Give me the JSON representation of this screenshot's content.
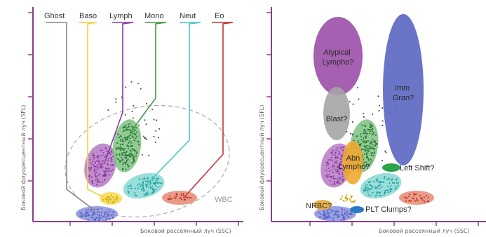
{
  "axes": {
    "y_label": "Боковой флуоресцентный луч (SFL)",
    "x_label": "Боковой рассеянный луч (SSC)"
  },
  "left_panel": {
    "legend": [
      {
        "label": "Ghost",
        "color": "#888888"
      },
      {
        "label": "Baso",
        "color": "#f3d23a"
      },
      {
        "label": "Lymph",
        "color": "#8e3aa3"
      },
      {
        "label": "Mono",
        "color": "#3f9b49"
      },
      {
        "label": "Neut",
        "color": "#4cc8c4"
      },
      {
        "label": "Eo",
        "color": "#c8323a"
      }
    ],
    "wbc_label": "WBC"
  },
  "right_panel": {
    "labels": {
      "atypical": "Atypical Lympho?",
      "atypical_l1": "Atypical",
      "atypical_l2": "Lympho?",
      "imm_l1": "Imm",
      "imm_l2": "Gran?",
      "blast": "Blast?",
      "abn_l1": "Abn",
      "abn_l2": "Lympho?",
      "left_shift": "Left Shift?",
      "nrbc": "NRBC?",
      "plt": "PLT Clumps?"
    }
  },
  "colors": {
    "axis": "#8a3d8e",
    "ghost": "#5a63c7",
    "baso": "#f3d23a",
    "lymph": "#8e3aa3",
    "mono": "#3f9b49",
    "neut": "#4cc8c4",
    "eo": "#d8573a",
    "imm": "#5b66c2",
    "blast": "#9a9a9a",
    "abn": "#f0a830",
    "nrbc": "#e8b040",
    "plt": "#2a78c8",
    "leftshift": "#2aa34a"
  }
}
